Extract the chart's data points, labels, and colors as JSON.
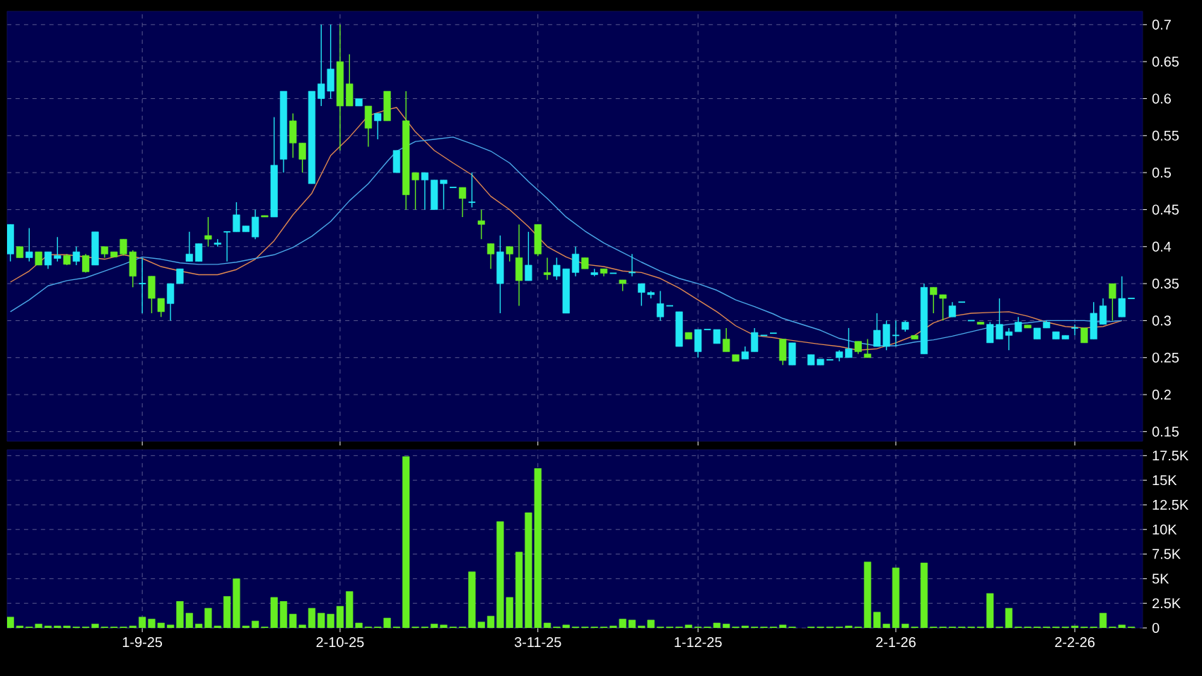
{
  "chart_data": [
    {
      "type": "candlestick",
      "categories": [
        null,
        null,
        null,
        null,
        null,
        null,
        null,
        null,
        null,
        null,
        null,
        null,
        null,
        null,
        null,
        null,
        null,
        null,
        null,
        null,
        null,
        null,
        null,
        null,
        null,
        null,
        null,
        null,
        null,
        null,
        null,
        null,
        null,
        null,
        null,
        null,
        null,
        null,
        null,
        null,
        null,
        null,
        null,
        null,
        null,
        null,
        null,
        null,
        null,
        null,
        null,
        null,
        null,
        null,
        null,
        null,
        null,
        null,
        null,
        null,
        null,
        null,
        null,
        null,
        null,
        null,
        null,
        null,
        null,
        null,
        null,
        null,
        null,
        null,
        null,
        null,
        null,
        null,
        null,
        null,
        null,
        null,
        null,
        null,
        null,
        null,
        null,
        null,
        null,
        null,
        null,
        null,
        null,
        null,
        null,
        null,
        null,
        null,
        null,
        null,
        null,
        null,
        null,
        null,
        null,
        null,
        null,
        null,
        null,
        null,
        null,
        null,
        null,
        null,
        null,
        null,
        null,
        null,
        null,
        null
      ],
      "ohlc": [
        [
          0.39,
          0.43,
          0.38,
          0.43
        ],
        [
          0.4,
          0.4,
          0.385,
          0.385
        ],
        [
          0.385,
          0.425,
          0.38,
          0.393
        ],
        [
          0.393,
          0.393,
          0.375,
          0.375
        ],
        [
          0.375,
          0.393,
          0.37,
          0.393
        ],
        [
          0.384,
          0.413,
          0.38,
          0.388
        ],
        [
          0.388,
          0.39,
          0.375,
          0.376
        ],
        [
          0.38,
          0.4,
          0.375,
          0.393
        ],
        [
          0.388,
          0.39,
          0.365,
          0.366
        ],
        [
          0.375,
          0.42,
          0.375,
          0.42
        ],
        [
          0.4,
          0.4,
          0.385,
          0.39
        ],
        [
          0.393,
          0.393,
          0.386,
          0.386
        ],
        [
          0.41,
          0.41,
          0.388,
          0.39
        ],
        [
          0.393,
          0.395,
          0.345,
          0.36
        ],
        [
          0.35,
          0.385,
          0.31,
          0.35
        ],
        [
          0.36,
          0.36,
          0.31,
          0.33
        ],
        [
          0.33,
          0.33,
          0.305,
          0.312
        ],
        [
          0.323,
          0.35,
          0.3,
          0.35
        ],
        [
          0.35,
          0.37,
          0.35,
          0.37
        ],
        [
          0.38,
          0.42,
          0.38,
          0.39
        ],
        [
          0.38,
          0.404,
          0.38,
          0.404
        ],
        [
          0.415,
          0.44,
          0.4,
          0.41
        ],
        [
          0.403,
          0.41,
          0.4,
          0.405
        ],
        [
          0.42,
          0.42,
          0.38,
          0.42
        ],
        [
          0.42,
          0.46,
          0.42,
          0.443
        ],
        [
          0.42,
          0.428,
          0.42,
          0.428
        ],
        [
          0.413,
          0.45,
          0.41,
          0.44
        ],
        [
          0.442,
          0.442,
          0.44,
          0.44
        ],
        [
          0.44,
          0.575,
          0.44,
          0.51
        ],
        [
          0.518,
          0.61,
          0.5,
          0.61
        ],
        [
          0.57,
          0.58,
          0.52,
          0.54
        ],
        [
          0.54,
          0.54,
          0.5,
          0.518
        ],
        [
          0.485,
          0.61,
          0.485,
          0.61
        ],
        [
          0.6,
          0.7,
          0.59,
          0.62
        ],
        [
          0.61,
          0.7,
          0.6,
          0.64
        ],
        [
          0.65,
          0.7,
          0.53,
          0.59
        ],
        [
          0.62,
          0.66,
          0.59,
          0.59
        ],
        [
          0.59,
          0.6,
          0.59,
          0.6
        ],
        [
          0.59,
          0.59,
          0.535,
          0.56
        ],
        [
          0.57,
          0.58,
          0.545,
          0.58
        ],
        [
          0.61,
          0.61,
          0.57,
          0.57
        ],
        [
          0.5,
          0.53,
          0.5,
          0.53
        ],
        [
          0.57,
          0.61,
          0.45,
          0.47
        ],
        [
          0.5,
          0.5,
          0.45,
          0.49
        ],
        [
          0.49,
          0.5,
          0.45,
          0.5
        ],
        [
          0.45,
          0.49,
          0.45,
          0.49
        ],
        [
          0.485,
          0.49,
          0.45,
          0.49
        ],
        [
          0.48,
          0.48,
          0.48,
          0.48
        ],
        [
          0.48,
          0.48,
          0.44,
          0.465
        ],
        [
          0.46,
          0.5,
          0.453,
          0.46
        ],
        [
          0.435,
          0.45,
          0.41,
          0.43
        ],
        [
          0.404,
          0.404,
          0.37,
          0.39
        ],
        [
          0.35,
          0.415,
          0.31,
          0.393
        ],
        [
          0.4,
          0.4,
          0.38,
          0.39
        ],
        [
          0.385,
          0.43,
          0.32,
          0.354
        ],
        [
          0.354,
          0.42,
          0.354,
          0.375
        ],
        [
          0.43,
          0.43,
          0.387,
          0.39
        ],
        [
          0.365,
          0.385,
          0.355,
          0.362
        ],
        [
          0.36,
          0.385,
          0.355,
          0.375
        ],
        [
          0.31,
          0.37,
          0.31,
          0.37
        ],
        [
          0.365,
          0.4,
          0.36,
          0.39
        ],
        [
          0.385,
          0.385,
          0.37,
          0.37
        ],
        [
          0.362,
          0.37,
          0.36,
          0.365
        ],
        [
          0.37,
          0.37,
          0.36,
          0.364
        ],
        [
          0.364,
          0.364,
          0.364,
          0.364
        ],
        [
          0.355,
          0.355,
          0.34,
          0.35
        ],
        [
          0.365,
          0.39,
          0.36,
          0.365
        ],
        [
          0.338,
          0.35,
          0.32,
          0.35
        ],
        [
          0.335,
          0.34,
          0.33,
          0.338
        ],
        [
          0.305,
          0.34,
          0.3,
          0.323
        ],
        [
          0.32,
          0.32,
          0.32,
          0.32
        ],
        [
          0.265,
          0.312,
          0.265,
          0.312
        ],
        [
          0.284,
          0.284,
          0.275,
          0.275
        ],
        [
          0.258,
          0.288,
          0.25,
          0.288
        ],
        [
          0.288,
          0.288,
          0.288,
          0.288
        ],
        [
          0.269,
          0.288,
          0.269,
          0.288
        ],
        [
          0.275,
          0.29,
          0.258,
          0.258
        ],
        [
          0.254,
          0.254,
          0.245,
          0.245
        ],
        [
          0.248,
          0.265,
          0.248,
          0.258
        ],
        [
          0.258,
          0.29,
          0.258,
          0.284
        ],
        [
          0.28,
          0.28,
          0.28,
          0.28
        ],
        [
          0.283,
          0.283,
          0.283,
          0.283
        ],
        [
          0.275,
          0.275,
          0.24,
          0.246
        ],
        [
          0.24,
          0.27,
          0.24,
          0.27
        ],
        null,
        [
          0.24,
          0.254,
          0.24,
          0.254
        ],
        [
          0.24,
          0.248,
          0.24,
          0.248
        ],
        [
          0.247,
          0.247,
          0.247,
          0.247
        ],
        [
          0.25,
          0.26,
          0.245,
          0.258
        ],
        [
          0.25,
          0.29,
          0.25,
          0.262
        ],
        [
          0.272,
          0.272,
          0.255,
          0.258
        ],
        [
          0.255,
          0.275,
          0.25,
          0.25
        ],
        [
          0.265,
          0.31,
          0.265,
          0.287
        ],
        [
          0.265,
          0.3,
          0.26,
          0.295
        ],
        [
          0.28,
          0.3,
          0.265,
          0.28
        ],
        [
          0.288,
          0.3,
          0.285,
          0.298
        ],
        [
          0.28,
          0.28,
          0.275,
          0.275
        ],
        [
          0.255,
          0.35,
          0.255,
          0.345
        ],
        [
          0.345,
          0.345,
          0.31,
          0.335
        ],
        [
          0.335,
          0.335,
          0.3,
          0.33
        ],
        [
          0.305,
          0.325,
          0.305,
          0.32
        ],
        [
          0.325,
          0.325,
          0.325,
          0.325
        ],
        [
          0.3,
          0.3,
          0.3,
          0.3
        ],
        [
          0.298,
          0.298,
          0.295,
          0.295
        ],
        [
          0.27,
          0.298,
          0.27,
          0.295
        ],
        [
          0.275,
          0.33,
          0.275,
          0.295
        ],
        [
          0.28,
          0.29,
          0.26,
          0.285
        ],
        [
          0.285,
          0.305,
          0.285,
          0.298
        ],
        [
          0.294,
          0.294,
          0.29,
          0.29
        ],
        [
          0.275,
          0.29,
          0.275,
          0.29
        ],
        [
          0.29,
          0.3,
          0.29,
          0.298
        ],
        [
          0.275,
          0.285,
          0.275,
          0.285
        ],
        [
          0.275,
          0.28,
          0.275,
          0.28
        ],
        [
          0.29,
          0.295,
          0.28,
          0.29
        ],
        [
          0.29,
          0.29,
          0.27,
          0.27
        ],
        [
          0.275,
          0.325,
          0.275,
          0.31
        ],
        [
          0.295,
          0.33,
          0.295,
          0.32
        ],
        [
          0.35,
          0.35,
          0.3,
          0.33
        ],
        [
          0.305,
          0.36,
          0.305,
          0.33
        ],
        [
          0.33,
          0.33,
          0.33,
          0.33
        ]
      ],
      "colors": [
        "#22e8f5",
        "#66ee22",
        "#22e8f5",
        "#66ee22",
        "#22e8f5",
        "#22e8f5",
        "#66ee22",
        "#22e8f5",
        "#66ee22",
        "#22e8f5",
        "#66ee22",
        "#66ee22",
        "#66ee22",
        "#66ee22",
        "#22e8f5",
        "#66ee22",
        "#66ee22",
        "#22e8f5",
        "#22e8f5",
        "#22e8f5",
        "#22e8f5",
        "#66ee22",
        "#22e8f5",
        "#22e8f5",
        "#22e8f5",
        "#22e8f5",
        "#22e8f5",
        "#66ee22",
        "#22e8f5",
        "#22e8f5",
        "#66ee22",
        "#66ee22",
        "#22e8f5",
        "#22e8f5",
        "#22e8f5",
        "#66ee22",
        "#66ee22",
        "#22e8f5",
        "#66ee22",
        "#22e8f5",
        "#66ee22",
        "#22e8f5",
        "#66ee22",
        "#66ee22",
        "#22e8f5",
        "#22e8f5",
        "#22e8f5",
        "#22e8f5",
        "#66ee22",
        "#22e8f5",
        "#66ee22",
        "#66ee22",
        "#22e8f5",
        "#66ee22",
        "#66ee22",
        "#22e8f5",
        "#66ee22",
        "#66ee22",
        "#22e8f5",
        "#22e8f5",
        "#22e8f5",
        "#66ee22",
        "#22e8f5",
        "#66ee22",
        "#22e8f5",
        "#66ee22",
        "#22e8f5",
        "#22e8f5",
        "#22e8f5",
        "#22e8f5",
        "#22e8f5",
        "#22e8f5",
        "#66ee22",
        "#22e8f5",
        "#22e8f5",
        "#22e8f5",
        "#66ee22",
        "#66ee22",
        "#22e8f5",
        "#22e8f5",
        "#22e8f5",
        "#22e8f5",
        "#66ee22",
        "#22e8f5",
        null,
        "#22e8f5",
        "#22e8f5",
        "#22e8f5",
        "#22e8f5",
        "#22e8f5",
        "#66ee22",
        "#66ee22",
        "#22e8f5",
        "#22e8f5",
        "#22e8f5",
        "#22e8f5",
        "#66ee22",
        "#22e8f5",
        "#66ee22",
        "#66ee22",
        "#22e8f5",
        "#22e8f5",
        "#22e8f5",
        "#66ee22",
        "#22e8f5",
        "#22e8f5",
        "#22e8f5",
        "#22e8f5",
        "#66ee22",
        "#22e8f5",
        "#22e8f5",
        "#22e8f5",
        "#22e8f5",
        "#22e8f5",
        "#66ee22",
        "#22e8f5",
        "#22e8f5",
        "#66ee22",
        "#22e8f5",
        "#22e8f5"
      ],
      "series": [
        {
          "type": "line",
          "color": "#e08850",
          "values": [
            0.352,
            null,
            0.367,
            null,
            0.389,
            null,
            0.389,
            null,
            0.386,
            null,
            0.383,
            null,
            0.389,
            null,
            0.384,
            null,
            0.373,
            null,
            0.367,
            null,
            0.362,
            null,
            0.362,
            null,
            0.369,
            null,
            0.383,
            null,
            0.408,
            null,
            0.443,
            null,
            0.472,
            null,
            0.523,
            null,
            0.548,
            null,
            0.577,
            null,
            0.585,
            0.588,
            null,
            0.555,
            null,
            0.53,
            null,
            0.513,
            null,
            0.497,
            null,
            0.468,
            null,
            0.45,
            null,
            0.427,
            null,
            0.4,
            null,
            0.386,
            null,
            0.376,
            null,
            0.373,
            null,
            0.367,
            null,
            0.365,
            null,
            0.357,
            null,
            0.344,
            null,
            0.328,
            null,
            0.312,
            null,
            0.293,
            null,
            0.28,
            null,
            0.277,
            0.275,
            null,
            null,
            null,
            0.268,
            null,
            0.265,
            null,
            0.26,
            null,
            0.262,
            null,
            0.27,
            null,
            0.28,
            null,
            0.297,
            null,
            0.306,
            null,
            0.31,
            null,
            0.311,
            null,
            0.312,
            null,
            0.306,
            null,
            0.298,
            null,
            0.292,
            null,
            0.29,
            null,
            0.292,
            null,
            0.3,
            null
          ]
        },
        {
          "type": "line",
          "color": "#4aa8e8",
          "values": [
            0.312,
            null,
            0.328,
            null,
            0.347,
            null,
            0.354,
            null,
            0.358,
            null,
            0.367,
            null,
            0.376,
            null,
            0.386,
            null,
            0.383,
            null,
            0.378,
            null,
            0.376,
            null,
            0.376,
            null,
            0.379,
            null,
            0.384,
            null,
            0.389,
            null,
            0.399,
            null,
            0.414,
            null,
            0.434,
            null,
            0.462,
            null,
            0.485,
            null,
            0.515,
            0.529,
            null,
            0.542,
            null,
            0.545,
            null,
            0.548,
            null,
            0.539,
            null,
            0.529,
            null,
            0.513,
            null,
            0.488,
            null,
            0.465,
            null,
            0.44,
            null,
            0.421,
            null,
            0.405,
            null,
            0.392,
            null,
            0.379,
            null,
            0.367,
            null,
            0.357,
            null,
            0.35,
            null,
            0.341,
            null,
            0.328,
            null,
            0.319,
            null,
            0.309,
            0.303,
            null,
            null,
            null,
            0.287,
            null,
            0.276,
            null,
            0.27,
            null,
            0.266,
            null,
            0.266,
            null,
            0.271,
            null,
            0.274,
            null,
            0.279,
            null,
            0.285,
            null,
            0.291,
            null,
            0.295,
            null,
            0.297,
            null,
            0.3,
            null,
            0.3,
            null,
            0.3,
            null,
            0.298,
            null,
            0.3,
            null
          ]
        }
      ],
      "ylim": [
        0.137,
        0.718
      ],
      "yticks": [
        0.15,
        0.2,
        0.25,
        0.3,
        0.35,
        0.4,
        0.45,
        0.5,
        0.55,
        0.6,
        0.65,
        0.7
      ],
      "grid": true,
      "tick_labels": "y"
    },
    {
      "type": "bar",
      "categories": [
        null,
        null,
        null,
        null,
        null,
        null,
        null,
        null,
        null,
        null,
        null,
        null,
        null,
        null,
        "1-9-25",
        null,
        null,
        null,
        null,
        null,
        null,
        null,
        null,
        null,
        null,
        null,
        null,
        null,
        null,
        null,
        null,
        null,
        null,
        null,
        null,
        "2-10-25",
        null,
        null,
        null,
        null,
        null,
        null,
        null,
        null,
        null,
        null,
        null,
        null,
        null,
        null,
        null,
        null,
        null,
        null,
        null,
        null,
        "3-11-25",
        null,
        null,
        null,
        null,
        null,
        null,
        null,
        null,
        null,
        null,
        null,
        null,
        null,
        null,
        null,
        null,
        "1-12-25",
        null,
        null,
        null,
        null,
        null,
        null,
        null,
        null,
        null,
        null,
        null,
        null,
        null,
        null,
        null,
        null,
        null,
        null,
        null,
        null,
        "2-1-26",
        null,
        null,
        null,
        null,
        null,
        null,
        null,
        null,
        null,
        null,
        null,
        null,
        null,
        null,
        null,
        null,
        null,
        null,
        "2-2-26",
        null,
        null,
        null,
        null,
        null,
        null
      ],
      "values": [
        1100,
        200,
        100,
        400,
        200,
        200,
        200,
        100,
        100,
        400,
        100,
        100,
        100,
        200,
        1100,
        900,
        500,
        300,
        2700,
        1500,
        400,
        2000,
        200,
        3200,
        5000,
        200,
        700,
        100,
        3100,
        2700,
        1400,
        300,
        2000,
        1500,
        1400,
        2200,
        3700,
        500,
        100,
        100,
        1000,
        100,
        17400,
        100,
        100,
        400,
        300,
        100,
        100,
        5700,
        600,
        1200,
        10800,
        3100,
        7700,
        11700,
        16200,
        500,
        100,
        300,
        100,
        100,
        100,
        100,
        200,
        900,
        800,
        200,
        800,
        100,
        100,
        100,
        300,
        100,
        100,
        500,
        400,
        100,
        200,
        100,
        100,
        100,
        300,
        100,
        null,
        100,
        100,
        100,
        100,
        200,
        100,
        6700,
        1600,
        400,
        6100,
        400,
        100,
        6600,
        100,
        100,
        100,
        100,
        100,
        100,
        3500,
        100,
        2000,
        100,
        100,
        100,
        100,
        100,
        100,
        200,
        100,
        100,
        1500,
        100,
        300,
        100
      ],
      "color": "#66ee22",
      "ylim": [
        0,
        18100
      ],
      "yticks": [
        0,
        {
          "value": 2500,
          "label": "2.5K"
        },
        {
          "value": 5000,
          "label": "5K"
        },
        {
          "value": 7500,
          "label": "7.5K"
        },
        {
          "value": 10000,
          "label": "10K"
        },
        {
          "value": 12500,
          "label": "12.5K"
        },
        {
          "value": 15000,
          "label": "15K"
        },
        {
          "value": 17500,
          "label": "17.5K"
        }
      ],
      "grid": true
    }
  ]
}
